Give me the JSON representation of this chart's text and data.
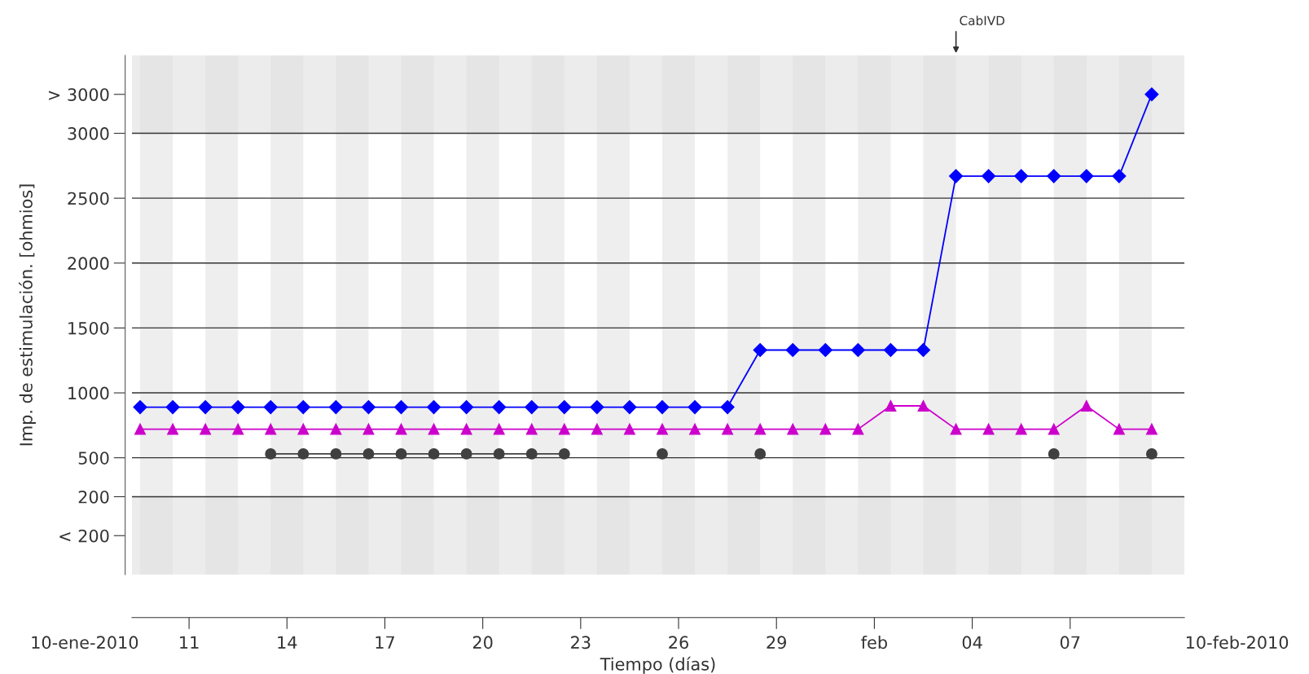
{
  "chart_data": {
    "type": "line",
    "xlabel": "Tiempo (días)",
    "ylabel": "Imp. de estimulación. [ohmios]",
    "x": [
      "2010-01-10",
      "2010-01-11",
      "2010-01-12",
      "2010-01-13",
      "2010-01-14",
      "2010-01-15",
      "2010-01-16",
      "2010-01-17",
      "2010-01-18",
      "2010-01-19",
      "2010-01-20",
      "2010-01-21",
      "2010-01-22",
      "2010-01-23",
      "2010-01-24",
      "2010-01-25",
      "2010-01-26",
      "2010-01-27",
      "2010-01-28",
      "2010-01-29",
      "2010-01-30",
      "2010-01-31",
      "2010-02-01",
      "2010-02-02",
      "2010-02-03",
      "2010-02-04",
      "2010-02-05",
      "2010-02-06",
      "2010-02-07",
      "2010-02-08",
      "2010-02-09",
      "2010-02-10"
    ],
    "series": [
      {
        "color": "#0000ff",
        "marker": "diamond",
        "values": [
          890,
          890,
          890,
          890,
          890,
          890,
          890,
          890,
          890,
          890,
          890,
          890,
          890,
          890,
          890,
          890,
          890,
          890,
          890,
          1330,
          1330,
          1330,
          1330,
          1330,
          1330,
          2670,
          2670,
          2670,
          2670,
          2670,
          2670,
          3300
        ]
      },
      {
        "color": "#cc00cc",
        "marker": "triangle",
        "values": [
          720,
          720,
          720,
          720,
          720,
          720,
          720,
          720,
          720,
          720,
          720,
          720,
          720,
          720,
          720,
          720,
          720,
          720,
          720,
          720,
          720,
          720,
          720,
          900,
          900,
          720,
          720,
          720,
          720,
          900,
          720,
          720
        ]
      },
      {
        "color": "#404040",
        "marker": "circle",
        "values": [
          null,
          null,
          null,
          null,
          530,
          530,
          530,
          530,
          530,
          530,
          530,
          530,
          530,
          530,
          null,
          null,
          530,
          null,
          null,
          530,
          null,
          null,
          null,
          null,
          null,
          null,
          null,
          null,
          530,
          null,
          null,
          530
        ]
      }
    ],
    "ylim": [
      -400,
      3600
    ],
    "yticks": [
      {
        "value": -100,
        "label": "< 200"
      },
      200,
      500,
      1000,
      1500,
      2000,
      2500,
      3000,
      {
        "value": 3300,
        "label": "> 3000"
      }
    ],
    "xlim": [
      "2010-01-09T18:00",
      "2010-02-11"
    ],
    "xticks": [
      {
        "value": "2010-01-11T12:00",
        "label": "11"
      },
      {
        "value": "2010-01-14T12:00",
        "label": "14"
      },
      {
        "value": "2010-01-17T12:00",
        "label": "17"
      },
      {
        "value": "2010-01-20T12:00",
        "label": "20"
      },
      {
        "value": "2010-01-23T12:00",
        "label": "23"
      },
      {
        "value": "2010-01-26T12:00",
        "label": "26"
      },
      {
        "value": "2010-01-29T12:00",
        "label": "29"
      },
      {
        "value": "2010-02-01T12:00",
        "label": "feb"
      },
      {
        "value": "2010-02-04T12:00",
        "label": "04"
      },
      {
        "value": "2010-02-07T12:00",
        "label": "07"
      }
    ],
    "grid": "y",
    "bands": [
      {
        "axis": "y",
        "from": 3000,
        "to": 3600,
        "color": "#ececec"
      },
      {
        "axis": "y",
        "from": -400,
        "to": 200,
        "color": "#ececec"
      },
      {
        "axis": "x",
        "from": "2010-01-10",
        "to": "2010-01-11",
        "color": "#e0e0e0"
      },
      {
        "axis": "x",
        "from": "2010-01-12",
        "to": "2010-01-13",
        "color": "#e0e0e0"
      },
      {
        "axis": "x",
        "from": "2010-01-14",
        "to": "2010-01-15",
        "color": "#e0e0e0"
      },
      {
        "axis": "x",
        "from": "2010-01-16",
        "to": "2010-01-17",
        "color": "#e0e0e0"
      },
      {
        "axis": "x",
        "from": "2010-01-18",
        "to": "2010-01-19",
        "color": "#e0e0e0"
      },
      {
        "axis": "x",
        "from": "2010-01-20",
        "to": "2010-01-21",
        "color": "#e0e0e0"
      },
      {
        "axis": "x",
        "from": "2010-01-22",
        "to": "2010-01-23",
        "color": "#e0e0e0"
      },
      {
        "axis": "x",
        "from": "2010-01-24",
        "to": "2010-01-25",
        "color": "#e0e0e0"
      },
      {
        "axis": "x",
        "from": "2010-01-26",
        "to": "2010-01-27",
        "color": "#e0e0e0"
      },
      {
        "axis": "x",
        "from": "2010-01-28",
        "to": "2010-01-29",
        "color": "#e0e0e0"
      },
      {
        "axis": "x",
        "from": "2010-01-30",
        "to": "2010-01-31",
        "color": "#e0e0e0"
      },
      {
        "axis": "x",
        "from": "2010-02-01",
        "to": "2010-02-02",
        "color": "#e0e0e0"
      },
      {
        "axis": "x",
        "from": "2010-02-03",
        "to": "2010-02-04",
        "color": "#e0e0e0"
      },
      {
        "axis": "x",
        "from": "2010-02-05",
        "to": "2010-02-06",
        "color": "#e0e0e0"
      },
      {
        "axis": "x",
        "from": "2010-02-07",
        "to": "2010-02-08",
        "color": "#e0e0e0"
      },
      {
        "axis": "x",
        "from": "2010-02-09",
        "to": "2010-02-10",
        "color": "#e0e0e0"
      }
    ],
    "annotations": [
      "CabIVD",
      "10-ene-2010",
      "10-feb-2010"
    ]
  }
}
